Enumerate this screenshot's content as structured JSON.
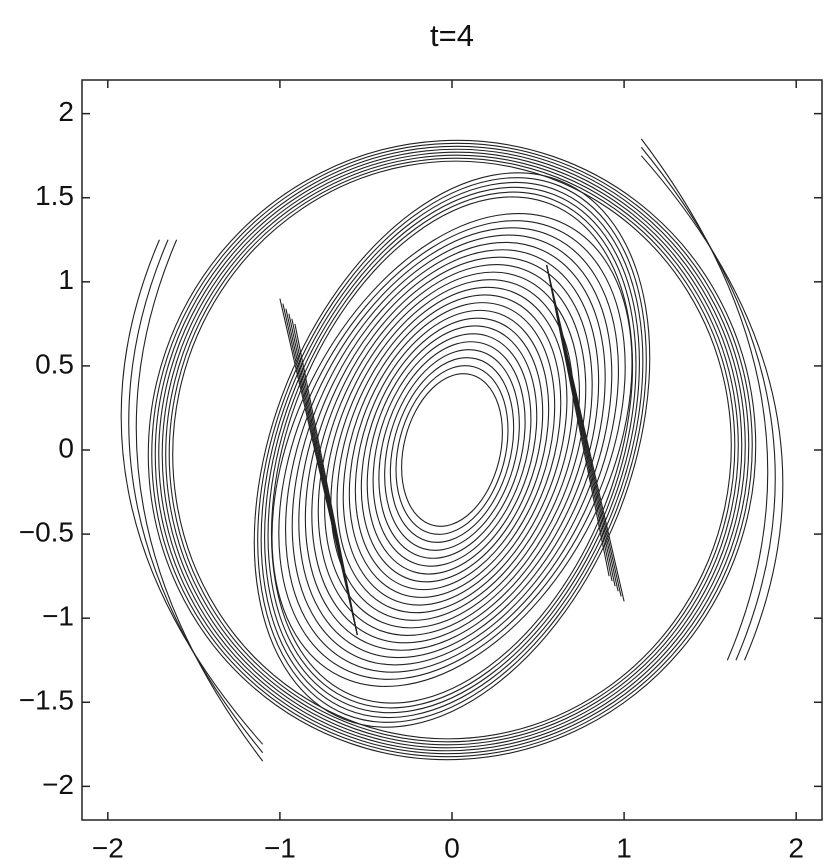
{
  "chart_data": {
    "type": "contour",
    "title": "t=4",
    "xlim": [
      -2.15,
      2.15
    ],
    "ylim": [
      -2.2,
      2.2
    ],
    "xticks": [
      {
        "value": -2,
        "label": "−2"
      },
      {
        "value": -1,
        "label": "−1"
      },
      0,
      1,
      2
    ],
    "yticks": [
      {
        "value": -2,
        "label": "−2"
      },
      {
        "value": -1.5,
        "label": "−1.5"
      },
      {
        "value": -1,
        "label": "−1"
      },
      {
        "value": -0.5,
        "label": "−0.5"
      },
      0,
      0.5,
      1,
      1.5,
      2
    ],
    "color": "#222222"
  }
}
